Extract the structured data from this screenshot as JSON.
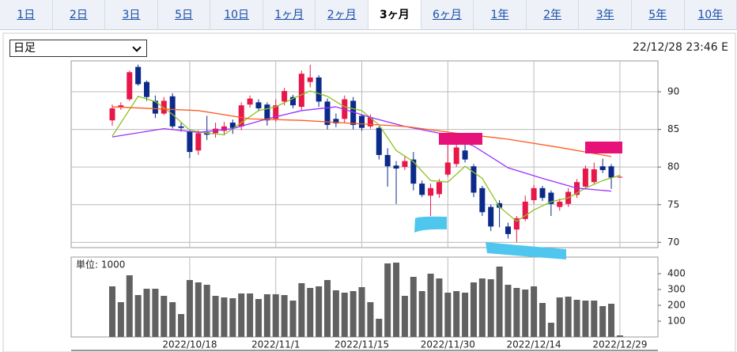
{
  "tabs": [
    "1日",
    "2日",
    "3日",
    "5日",
    "10日",
    "1ヶ月",
    "2ヶ月",
    "3ヶ月",
    "6ヶ月",
    "1年",
    "2年",
    "3年",
    "5年",
    "10年"
  ],
  "selected_tab": 7,
  "interval_select": "日足",
  "timestamp": "22/12/28 23:46 E",
  "chart_data": [
    {
      "type": "candlestick",
      "ylim": [
        69.3,
        94.1
      ],
      "yticks": [
        70,
        75,
        80,
        85,
        90
      ],
      "grid": true,
      "up_color": "#e8174a",
      "down_color": "#0b2a8a",
      "open": [
        86.2,
        87.9,
        89.0,
        93.3,
        91.3,
        88.8,
        87.1,
        89.4,
        85.4,
        84.7,
        82.2,
        84.6,
        84.5,
        84.8,
        85.9,
        85.4,
        88.3,
        88.6,
        88.3,
        86.4,
        88.7,
        89.3,
        88.0,
        91.3,
        91.9,
        88.7,
        86.4,
        86.4,
        88.8,
        86.8,
        85.4,
        85.2,
        81.6,
        80.2,
        80.0,
        81.0,
        77.8,
        76.2,
        76.4,
        79.0,
        80.4,
        82.2,
        80.1,
        77.2,
        74.7,
        75.2,
        72.1,
        71.7,
        73.1,
        75.6,
        77.2,
        76.6,
        74.7,
        75.1,
        76.3,
        77.4,
        78.0,
        80.1,
        80.1,
        78.7
      ],
      "high": [
        88.3,
        88.6,
        92.8,
        93.6,
        91.5,
        89.5,
        89.3,
        89.8,
        85.9,
        85.0,
        84.9,
        86.8,
        85.9,
        86.0,
        86.3,
        88.6,
        89.5,
        89.0,
        88.6,
        89.0,
        90.5,
        89.6,
        92.8,
        93.6,
        92.2,
        89.1,
        87.1,
        89.5,
        89.3,
        87.0,
        87.0,
        85.4,
        82.5,
        80.8,
        81.5,
        82.0,
        78.2,
        77.8,
        78.4,
        83.0,
        83.5,
        83.3,
        80.4,
        77.5,
        75.0,
        75.6,
        72.6,
        73.5,
        76.2,
        77.6,
        77.5,
        76.9,
        75.8,
        77.2,
        78.4,
        80.2,
        80.6,
        81.1,
        80.4,
        78.9
      ],
      "low": [
        85.5,
        87.6,
        88.8,
        90.8,
        88.8,
        86.5,
        86.9,
        85.1,
        84.7,
        81.2,
        81.6,
        83.6,
        83.9,
        84.2,
        84.4,
        84.9,
        87.9,
        87.4,
        85.5,
        86.0,
        88.2,
        87.8,
        87.6,
        90.6,
        88.0,
        85.0,
        85.3,
        85.8,
        85.0,
        84.8,
        85.1,
        81.0,
        77.4,
        75.1,
        79.6,
        76.9,
        76.0,
        73.5,
        75.9,
        78.7,
        80.0,
        80.6,
        76.0,
        73.5,
        71.5,
        72.0,
        70.5,
        70.0,
        72.8,
        75.1,
        75.5,
        73.5,
        74.2,
        74.7,
        75.9,
        77.1,
        77.7,
        79.2,
        77.1,
        78.6
      ],
      "close": [
        87.8,
        88.2,
        92.6,
        91.0,
        89.3,
        87.1,
        88.8,
        85.4,
        85.2,
        82.0,
        84.5,
        84.3,
        85.1,
        85.4,
        85.2,
        88.2,
        89.1,
        87.8,
        86.2,
        88.2,
        90.1,
        88.2,
        92.4,
        91.9,
        88.7,
        85.6,
        85.8,
        89.0,
        85.6,
        85.2,
        86.6,
        81.6,
        80.1,
        79.8,
        80.8,
        77.8,
        76.3,
        77.2,
        78.0,
        80.6,
        82.6,
        81.0,
        76.6,
        74.0,
        72.1,
        74.6,
        71.1,
        73.2,
        75.4,
        77.2,
        75.9,
        75.1,
        75.4,
        76.7,
        78.0,
        79.8,
        79.7,
        79.6,
        78.6,
        78.7
      ],
      "lines": [
        {
          "color": "#8dc21f",
          "x": [
            0,
            3,
            5,
            7,
            9,
            11,
            13,
            15,
            17,
            19,
            21,
            23,
            25,
            27,
            29,
            31,
            33,
            35,
            37,
            39,
            41,
            43,
            45,
            47,
            49,
            51,
            53,
            55,
            57,
            59
          ],
          "values": [
            84.1,
            89.4,
            88.7,
            87.0,
            84.9,
            84.5,
            84.3,
            85.9,
            87.5,
            88.0,
            89.1,
            90.1,
            89.4,
            88.0,
            87.5,
            85.6,
            82.2,
            80.7,
            78.2,
            78.0,
            80.1,
            78.5,
            74.7,
            72.8,
            74.3,
            75.4,
            75.9,
            77.2,
            78.2,
            78.9
          ]
        },
        {
          "color": "#9b30ff",
          "x": [
            0,
            6,
            10,
            14,
            18,
            22,
            26,
            30,
            34,
            38,
            42,
            46,
            50,
            54,
            58
          ],
          "values": [
            84.0,
            85.1,
            84.6,
            85.1,
            86.4,
            87.5,
            88.0,
            86.6,
            85.4,
            84.5,
            82.8,
            79.9,
            78.5,
            77.2,
            76.8
          ]
        },
        {
          "color": "#ff5a1f",
          "x": [
            0,
            4,
            10,
            16,
            22,
            28,
            34,
            40,
            46,
            52,
            58
          ],
          "values": [
            88.0,
            87.8,
            87.5,
            86.4,
            86.2,
            85.8,
            85.4,
            84.5,
            83.7,
            82.6,
            81.4
          ]
        }
      ]
    },
    {
      "type": "bar",
      "unit_label": "単位: 1000",
      "color": "#616161",
      "categories": [
        null,
        null,
        null,
        null,
        null,
        null,
        null,
        null,
        null,
        "2022/10/18",
        null,
        null,
        null,
        null,
        null,
        null,
        null,
        null,
        null,
        "2022/11/1",
        null,
        null,
        null,
        null,
        null,
        null,
        null,
        null,
        null,
        "2022/11/15",
        null,
        null,
        null,
        null,
        null,
        null,
        null,
        null,
        null,
        "2022/11/30",
        null,
        null,
        null,
        null,
        null,
        null,
        null,
        null,
        null,
        "2022/12/14",
        null,
        null,
        null,
        null,
        null,
        null,
        null,
        null,
        null,
        "2022/12/29"
      ],
      "values": [
        320,
        220,
        390,
        265,
        305,
        305,
        260,
        220,
        145,
        360,
        345,
        330,
        260,
        250,
        245,
        275,
        275,
        240,
        270,
        270,
        265,
        230,
        340,
        310,
        320,
        360,
        295,
        280,
        290,
        315,
        220,
        115,
        465,
        470,
        260,
        380,
        290,
        400,
        370,
        280,
        290,
        280,
        345,
        370,
        365,
        445,
        330,
        310,
        300,
        320,
        215,
        90,
        250,
        255,
        235,
        230,
        230,
        195,
        210,
        10
      ],
      "ylim": [
        0,
        505
      ],
      "yticks": [
        100,
        200,
        300,
        400
      ]
    }
  ]
}
